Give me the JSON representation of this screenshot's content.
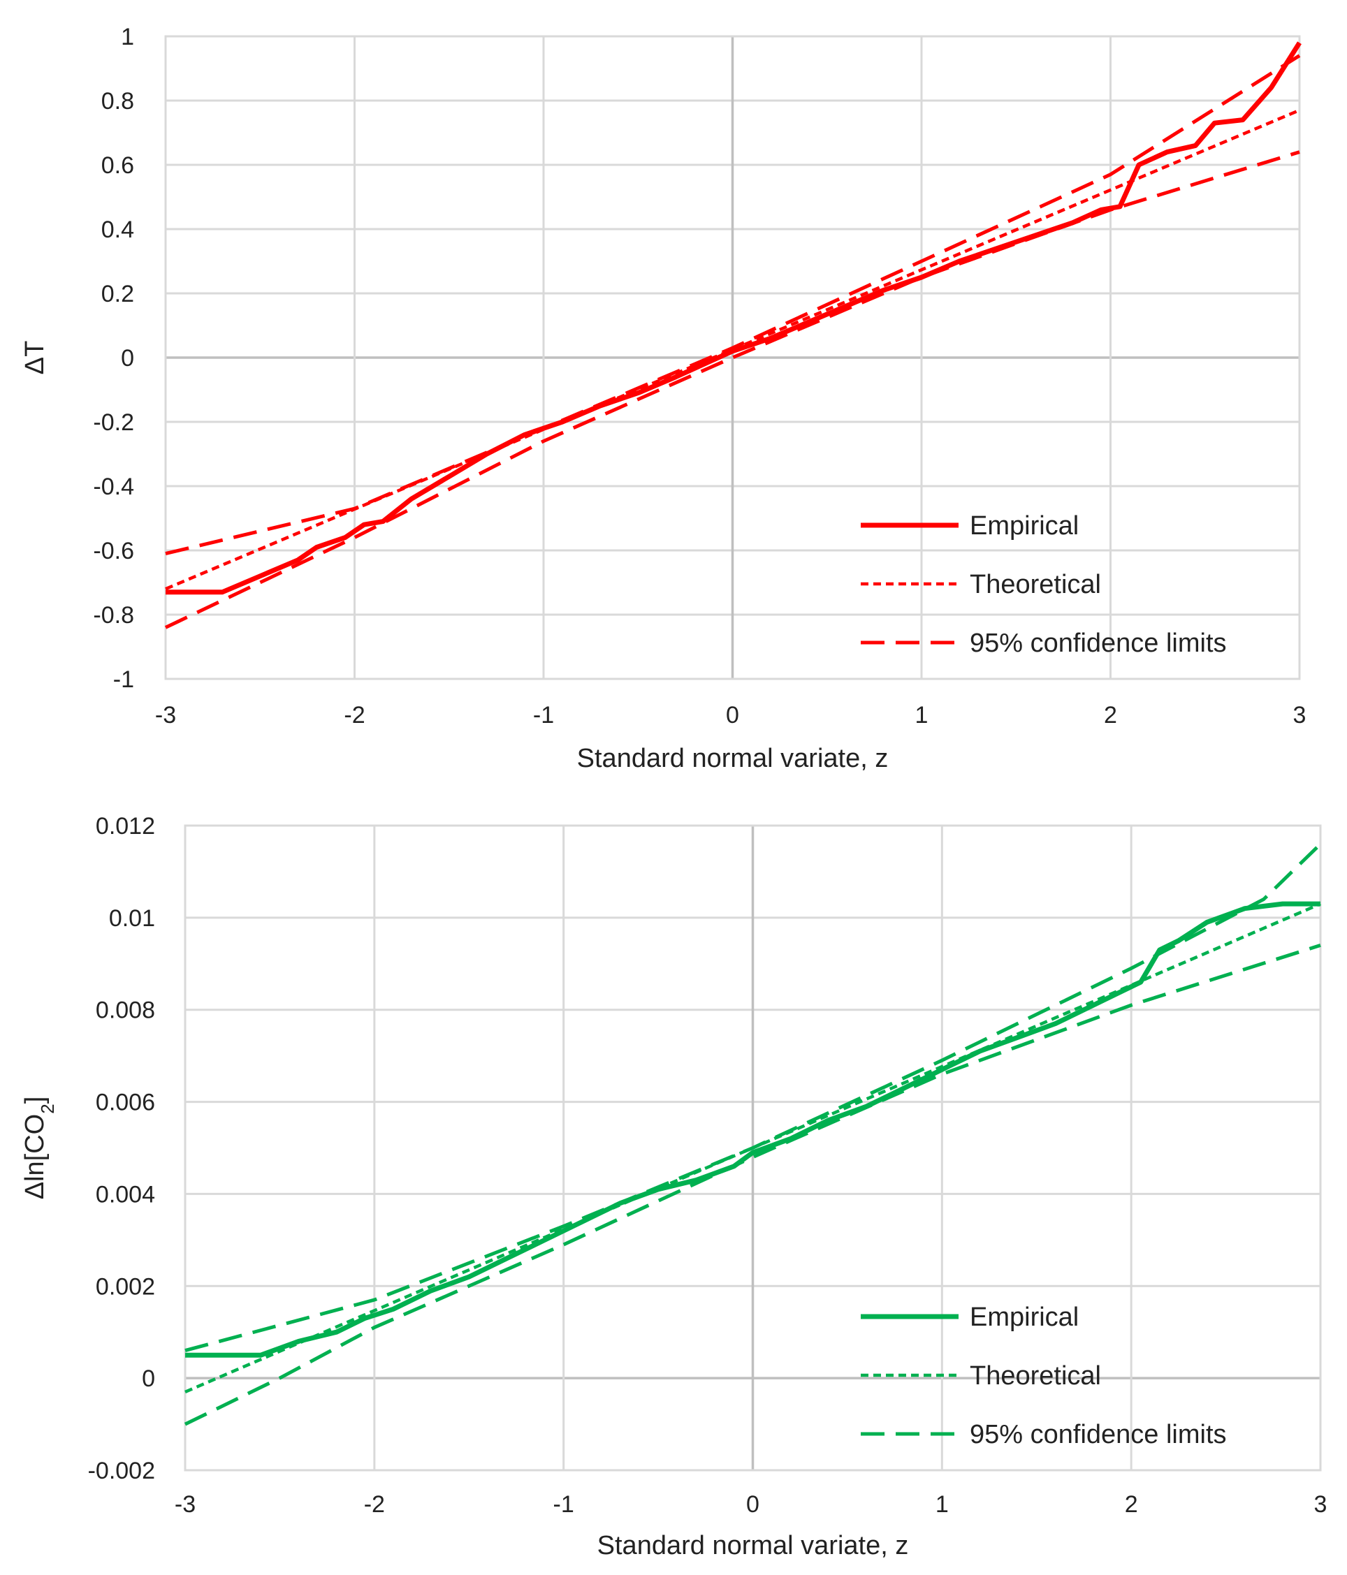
{
  "chart_data": [
    {
      "type": "line",
      "color": "#ff0000",
      "xlabel": "Standard normal variate, z",
      "ylabel": "ΔT",
      "ylabel_sub": "",
      "ylabel_suffix": "",
      "xlim": [
        -3,
        3
      ],
      "ylim": [
        -1,
        1
      ],
      "x_ticks": [
        "-3",
        "-2",
        "-1",
        "0",
        "1",
        "2",
        "3"
      ],
      "y_ticks": [
        "1",
        "0.8",
        "0.6",
        "0.4",
        "0.2",
        "0",
        "-0.2",
        "-0.4",
        "-0.6",
        "-0.8",
        "-1"
      ],
      "grid": true,
      "legend": "bottom-right",
      "series": [
        {
          "name": "Empirical",
          "style": "solid",
          "x": [
            -3,
            -2.7,
            -2.5,
            -2.3,
            -2.2,
            -2.05,
            -1.95,
            -1.85,
            -1.7,
            -1.5,
            -1.3,
            -1.1,
            -0.9,
            -0.7,
            -0.5,
            -0.3,
            -0.15,
            0,
            0.2,
            0.4,
            0.6,
            0.8,
            1,
            1.2,
            1.4,
            1.6,
            1.8,
            1.95,
            2.05,
            2.15,
            2.3,
            2.45,
            2.55,
            2.7,
            2.85,
            3
          ],
          "y": [
            -0.73,
            -0.73,
            -0.68,
            -0.63,
            -0.59,
            -0.56,
            -0.52,
            -0.51,
            -0.44,
            -0.37,
            -0.3,
            -0.24,
            -0.2,
            -0.15,
            -0.11,
            -0.06,
            -0.02,
            0.02,
            0.06,
            0.11,
            0.16,
            0.21,
            0.25,
            0.3,
            0.34,
            0.38,
            0.42,
            0.46,
            0.47,
            0.6,
            0.64,
            0.66,
            0.73,
            0.74,
            0.84,
            0.98
          ]
        },
        {
          "name": "Theoretical",
          "style": "dotted",
          "x": [
            -3,
            3
          ],
          "y": [
            -0.72,
            0.77
          ]
        },
        {
          "name": "95% confidence limits",
          "style": "dashed",
          "x": [
            -3,
            -2,
            -1,
            0,
            1,
            2,
            3
          ],
          "y": [
            -0.84,
            -0.56,
            -0.26,
            0.0,
            0.25,
            0.46,
            0.64
          ]
        },
        {
          "name": "",
          "style": "dashed",
          "x": [
            -3,
            -2,
            -1,
            0,
            1,
            2,
            3
          ],
          "y": [
            -0.61,
            -0.47,
            -0.22,
            0.03,
            0.3,
            0.57,
            0.94
          ]
        }
      ]
    },
    {
      "type": "line",
      "color": "#00b050",
      "xlabel": "Standard normal variate, z",
      "ylabel": "Δln[CO",
      "ylabel_sub": "2",
      "ylabel_suffix": "]",
      "xlim": [
        -3,
        3
      ],
      "ylim": [
        -0.002,
        0.012
      ],
      "x_ticks": [
        "-3",
        "-2",
        "-1",
        "0",
        "1",
        "2",
        "3"
      ],
      "y_ticks": [
        "0.012",
        "0.01",
        "0.008",
        "0.006",
        "0.004",
        "0.002",
        "0",
        "-0.002"
      ],
      "grid": true,
      "legend": "bottom-right",
      "series": [
        {
          "name": "Empirical",
          "style": "solid",
          "x": [
            -3,
            -2.6,
            -2.4,
            -2.2,
            -2.05,
            -1.9,
            -1.7,
            -1.5,
            -1.3,
            -1.1,
            -0.9,
            -0.7,
            -0.5,
            -0.3,
            -0.1,
            0,
            0.2,
            0.4,
            0.6,
            0.8,
            1,
            1.2,
            1.4,
            1.6,
            1.8,
            1.95,
            2.05,
            2.15,
            2.25,
            2.4,
            2.6,
            2.8,
            3
          ],
          "y": [
            0.0005,
            0.0005,
            0.0008,
            0.001,
            0.0013,
            0.0015,
            0.0019,
            0.0022,
            0.0026,
            0.003,
            0.0034,
            0.0038,
            0.0041,
            0.0043,
            0.0046,
            0.0049,
            0.0052,
            0.0056,
            0.0059,
            0.0063,
            0.0067,
            0.0071,
            0.0074,
            0.0077,
            0.0081,
            0.0084,
            0.0086,
            0.0093,
            0.0095,
            0.0099,
            0.0102,
            0.0103,
            0.0103
          ]
        },
        {
          "name": "Theoretical",
          "style": "dotted",
          "x": [
            -3,
            3
          ],
          "y": [
            -0.0003,
            0.0103
          ]
        },
        {
          "name": "95% confidence limits",
          "style": "dashed",
          "x": [
            -3,
            -2.5,
            -2,
            -1,
            0,
            1,
            2,
            3
          ],
          "y": [
            -0.001,
            0.0,
            0.0011,
            0.0029,
            0.0048,
            0.0066,
            0.0081,
            0.0094
          ]
        },
        {
          "name": "",
          "style": "dashed",
          "x": [
            -3,
            -2,
            -1,
            0,
            1,
            2,
            2.7,
            3
          ],
          "y": [
            0.0006,
            0.0017,
            0.0033,
            0.005,
            0.0069,
            0.0089,
            0.0104,
            0.0116
          ]
        }
      ]
    }
  ]
}
